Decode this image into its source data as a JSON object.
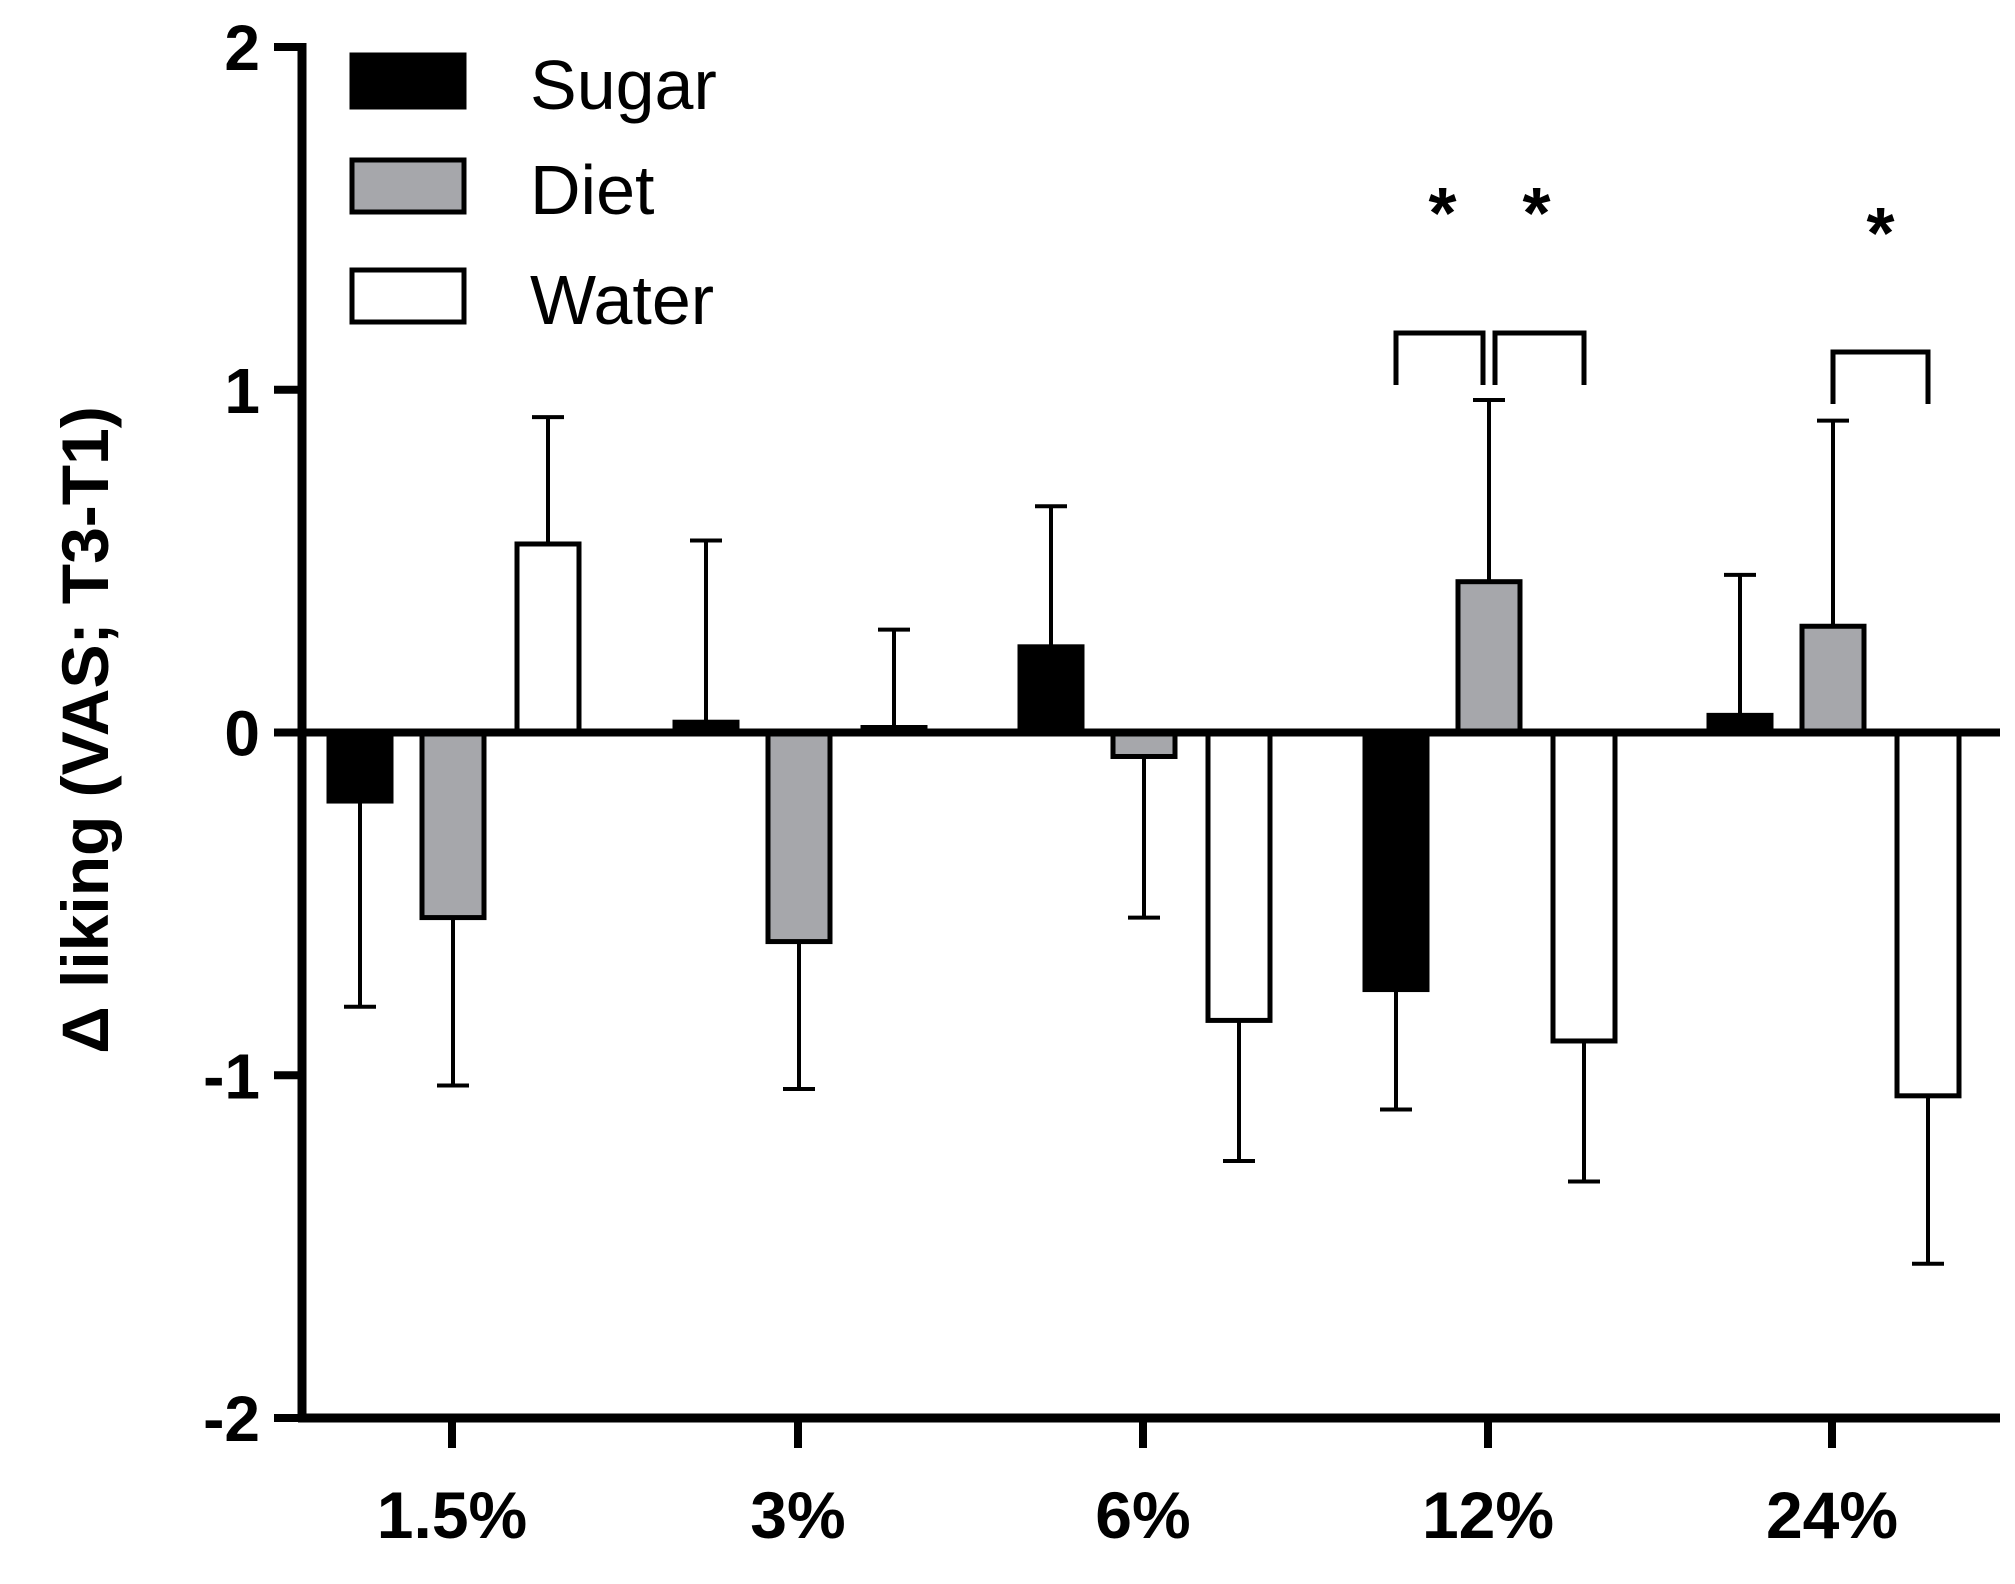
{
  "chart_data": {
    "type": "bar",
    "title": "",
    "xlabel": "",
    "ylabel": "Δ liking (VAS; T3-T1)",
    "ylim": [
      -2,
      2
    ],
    "yticks": [
      "-2",
      "-1",
      "0",
      "1",
      "2"
    ],
    "ytick_values": [
      -2,
      -1,
      0,
      1,
      2
    ],
    "categories": [
      "1.5%",
      "3%",
      "6%",
      "12%",
      "24%"
    ],
    "legend_position": "top-left",
    "series": [
      {
        "name": "Sugar",
        "color": "#000000",
        "values": [
          -0.2,
          0.03,
          0.25,
          -0.75,
          0.05
        ],
        "errors": [
          0.6,
          0.53,
          0.41,
          0.35,
          0.41
        ]
      },
      {
        "name": "Diet",
        "color": "#a6a7ab",
        "values": [
          -0.54,
          -0.61,
          -0.07,
          0.44,
          0.31
        ],
        "errors": [
          0.49,
          0.43,
          0.47,
          0.53,
          0.6
        ]
      },
      {
        "name": "Water",
        "color": "#ffffff",
        "values": [
          0.55,
          0.0,
          -0.84,
          -0.9,
          -1.06
        ],
        "errors": [
          0.37,
          0.3,
          0.41,
          0.41,
          0.49
        ]
      }
    ],
    "annotations": [
      {
        "category": "12%",
        "from": "Sugar",
        "to": "Diet",
        "label": "*"
      },
      {
        "category": "12%",
        "from": "Diet",
        "to": "Water",
        "label": "*"
      },
      {
        "category": "24%",
        "from": "Diet",
        "to": "Water",
        "label": "*"
      }
    ]
  }
}
